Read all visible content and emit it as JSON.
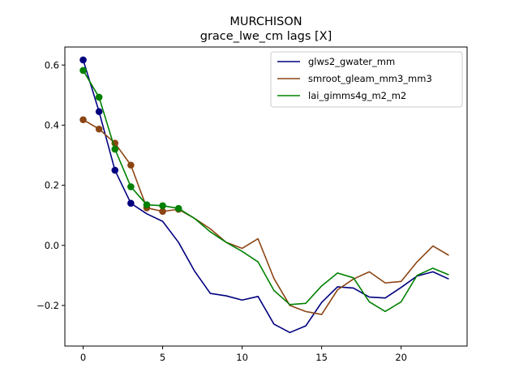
{
  "chart_data": {
    "type": "line",
    "title": "MURCHISON",
    "subtitle": "grace_lwe_cm lags [X]",
    "xlabel": "",
    "ylabel": "",
    "xlim": [
      -1.15,
      24.15
    ],
    "ylim": [
      -0.335,
      0.66
    ],
    "xticks": [
      0,
      5,
      10,
      15,
      20
    ],
    "xtick_labels": [
      "0",
      "5",
      "10",
      "15",
      "20"
    ],
    "yticks": [
      -0.2,
      0.0,
      0.2,
      0.4,
      0.6
    ],
    "ytick_labels": [
      "−0.2",
      "0.0",
      "0.2",
      "0.4",
      "0.6"
    ],
    "grid": false,
    "legend_position": "top-right",
    "x": [
      0,
      1,
      2,
      3,
      4,
      5,
      6,
      7,
      8,
      9,
      10,
      11,
      12,
      13,
      14,
      15,
      16,
      17,
      18,
      19,
      20,
      21,
      22,
      23
    ],
    "series": [
      {
        "name": "glws2_gwater_mm",
        "color": "#00007f",
        "values": [
          0.617,
          0.445,
          0.25,
          0.14,
          0.105,
          0.08,
          0.01,
          -0.085,
          -0.16,
          -0.168,
          -0.182,
          -0.17,
          -0.262,
          -0.29,
          -0.268,
          -0.19,
          -0.138,
          -0.142,
          -0.172,
          -0.175,
          -0.14,
          -0.102,
          -0.088,
          -0.112
        ],
        "marker_x": [
          0,
          1,
          2,
          3
        ]
      },
      {
        "name": "smroot_gleam_mm3_mm3",
        "color": "#8b4513",
        "values": [
          0.418,
          0.387,
          0.34,
          0.267,
          0.125,
          0.113,
          0.12,
          0.09,
          0.055,
          0.01,
          -0.01,
          0.022,
          -0.11,
          -0.2,
          -0.22,
          -0.23,
          -0.148,
          -0.112,
          -0.088,
          -0.125,
          -0.12,
          -0.055,
          -0.002,
          -0.033
        ],
        "marker_x": [
          0,
          1,
          2,
          3,
          4,
          5,
          6
        ]
      },
      {
        "name": "lai_gimms4g_m2_m2",
        "color": "#008000",
        "values": [
          0.582,
          0.493,
          0.32,
          0.195,
          0.135,
          0.132,
          0.123,
          0.09,
          0.045,
          0.01,
          -0.02,
          -0.055,
          -0.15,
          -0.197,
          -0.193,
          -0.135,
          -0.092,
          -0.108,
          -0.188,
          -0.22,
          -0.188,
          -0.1,
          -0.076,
          -0.098
        ],
        "marker_x": [
          0,
          1,
          2,
          3,
          4,
          5,
          6
        ]
      }
    ]
  }
}
